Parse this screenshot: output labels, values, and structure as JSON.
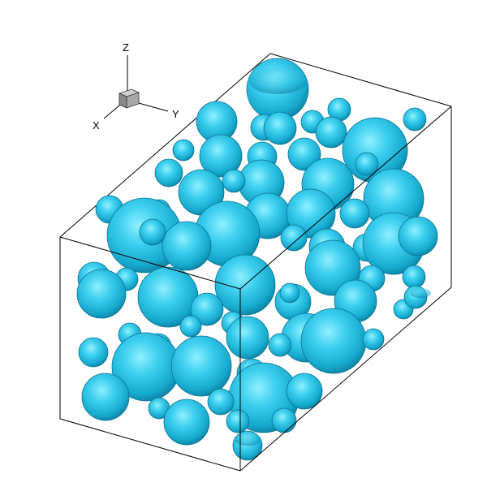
{
  "axis_labels": {
    "z": "Z",
    "x": "X",
    "y": "Y"
  },
  "colors": {
    "background": "#ffffff",
    "box_edge": "#000000",
    "bubble_dark": "#0a5f79",
    "bubble_mid": "#19b4d8",
    "bubble_light": "#7fe9fb",
    "triad_cube": "#9a9a9a"
  }
}
